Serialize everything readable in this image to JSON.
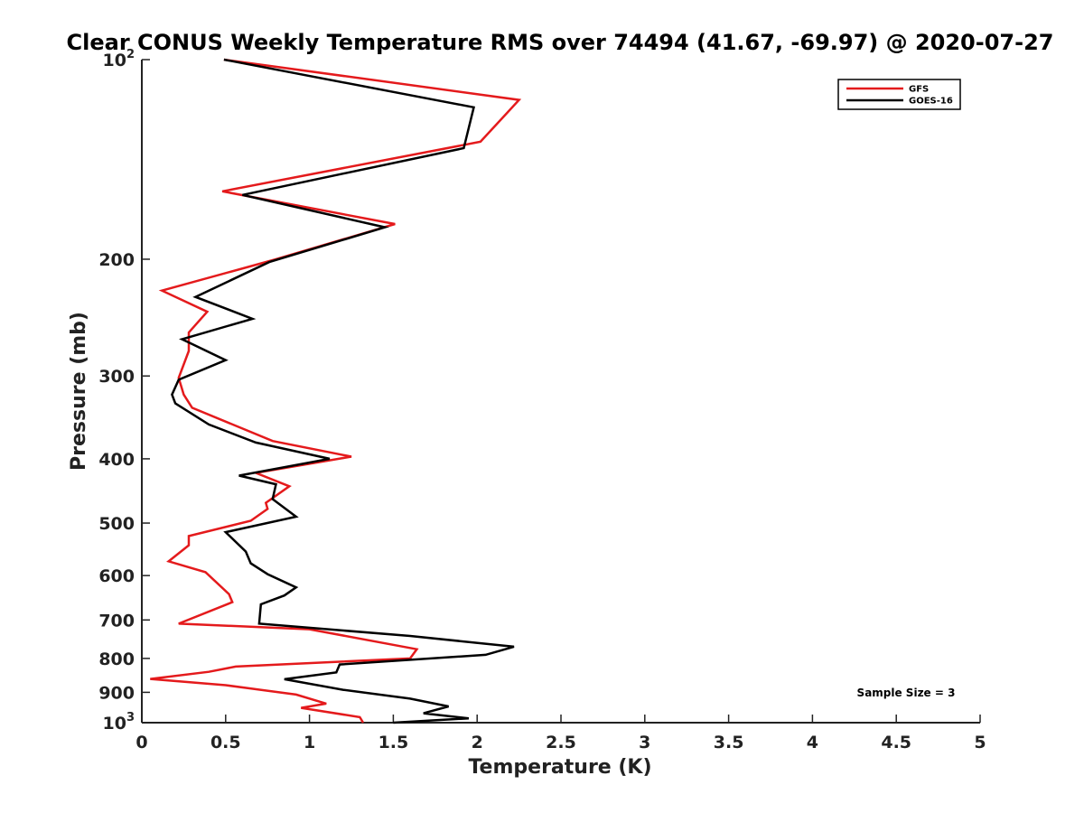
{
  "chart_data": {
    "type": "line",
    "title": "Clear CONUS Weekly Temperature RMS over 74494 (41.67, -69.97) @ 2020-07-27",
    "xlabel": "Temperature (K)",
    "ylabel": "Pressure (mb)",
    "xlim": [
      0,
      5
    ],
    "ylim": [
      100,
      1000
    ],
    "y_scale": "log",
    "y_reversed": true,
    "grid": false,
    "legend_position": "top-right",
    "x_ticks": [
      "0",
      "0.5",
      "1",
      "1.5",
      "2",
      "2.5",
      "3",
      "3.5",
      "4",
      "4.5",
      "5"
    ],
    "y_ticks": [
      {
        "value": 100,
        "base": "10",
        "exp": "2"
      },
      {
        "value": 200,
        "label": "200"
      },
      {
        "value": 300,
        "label": "300"
      },
      {
        "value": 400,
        "label": "400"
      },
      {
        "value": 500,
        "label": "500"
      },
      {
        "value": 600,
        "label": "600"
      },
      {
        "value": 700,
        "label": "700"
      },
      {
        "value": 800,
        "label": "800"
      },
      {
        "value": 900,
        "label": "900"
      },
      {
        "value": 1000,
        "base": "10",
        "exp": "3"
      }
    ],
    "annotation": "Sample Size = 3",
    "series": [
      {
        "name": "GFS",
        "color": "#e41a1c",
        "points": [
          [
            0.49,
            100
          ],
          [
            2.25,
            115
          ],
          [
            2.02,
            133
          ],
          [
            0.48,
            158
          ],
          [
            1.51,
            177
          ],
          [
            0.8,
            200
          ],
          [
            0.12,
            223
          ],
          [
            0.39,
            240
          ],
          [
            0.28,
            258
          ],
          [
            0.28,
            275
          ],
          [
            0.22,
            302
          ],
          [
            0.25,
            320
          ],
          [
            0.3,
            335
          ],
          [
            0.78,
            376
          ],
          [
            1.25,
            397
          ],
          [
            0.68,
            420
          ],
          [
            0.88,
            440
          ],
          [
            0.74,
            466
          ],
          [
            0.75,
            476
          ],
          [
            0.65,
            496
          ],
          [
            0.28,
            523
          ],
          [
            0.28,
            540
          ],
          [
            0.16,
            571
          ],
          [
            0.38,
            593
          ],
          [
            0.52,
            640
          ],
          [
            0.54,
            658
          ],
          [
            0.22,
            709
          ],
          [
            1.0,
            723
          ],
          [
            1.64,
            775
          ],
          [
            1.6,
            800
          ],
          [
            0.56,
            823
          ],
          [
            0.4,
            838
          ],
          [
            0.05,
            859
          ],
          [
            0.5,
            878
          ],
          [
            0.92,
            907
          ],
          [
            1.1,
            936
          ],
          [
            0.95,
            950
          ],
          [
            1.3,
            981
          ],
          [
            1.32,
            1000
          ]
        ]
      },
      {
        "name": "GOES-16",
        "color": "#000000",
        "points": [
          [
            0.49,
            100
          ],
          [
            1.98,
            118
          ],
          [
            1.92,
            136
          ],
          [
            0.6,
            160
          ],
          [
            1.45,
            179
          ],
          [
            0.76,
            202
          ],
          [
            0.32,
            228
          ],
          [
            0.66,
            246
          ],
          [
            0.24,
            264
          ],
          [
            0.5,
            284
          ],
          [
            0.22,
            304
          ],
          [
            0.18,
            320
          ],
          [
            0.2,
            330
          ],
          [
            0.4,
            355
          ],
          [
            0.68,
            378
          ],
          [
            1.12,
            400
          ],
          [
            0.58,
            424
          ],
          [
            0.8,
            437
          ],
          [
            0.78,
            460
          ],
          [
            0.92,
            489
          ],
          [
            0.5,
            516
          ],
          [
            0.62,
            552
          ],
          [
            0.65,
            575
          ],
          [
            0.75,
            597
          ],
          [
            0.92,
            625
          ],
          [
            0.85,
            643
          ],
          [
            0.71,
            663
          ],
          [
            0.7,
            709
          ],
          [
            1.6,
            740
          ],
          [
            2.22,
            768
          ],
          [
            2.05,
            790
          ],
          [
            1.18,
            817
          ],
          [
            1.16,
            840
          ],
          [
            0.85,
            860
          ],
          [
            1.2,
            892
          ],
          [
            1.6,
            920
          ],
          [
            1.83,
            945
          ],
          [
            1.68,
            968
          ],
          [
            1.95,
            985
          ],
          [
            1.5,
            1000
          ]
        ]
      }
    ]
  }
}
